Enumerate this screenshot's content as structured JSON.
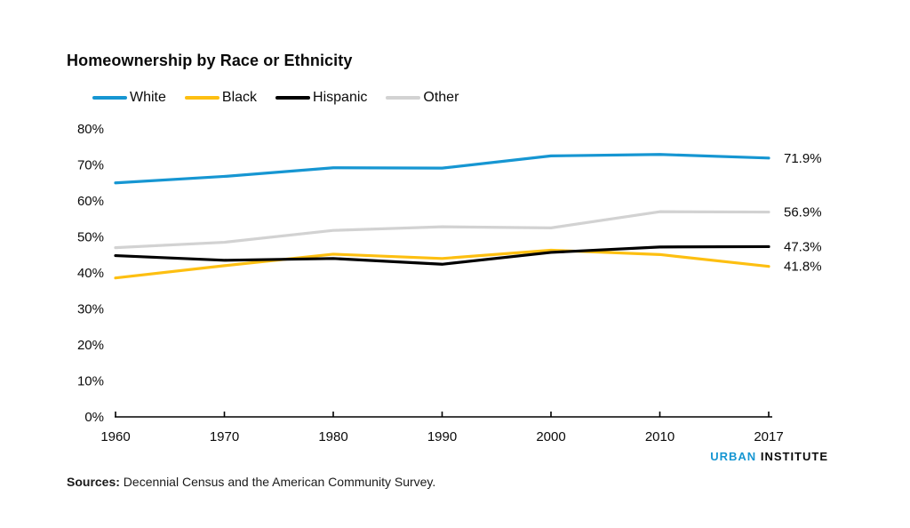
{
  "title": "Homeownership by Race or Ethnicity",
  "chart_data": {
    "type": "line",
    "title": "Homeownership by Race or Ethnicity",
    "x_labels": [
      "1960",
      "1970",
      "1980",
      "1990",
      "2000",
      "2010",
      "2017"
    ],
    "y_ticks": [
      "0%",
      "10%",
      "20%",
      "30%",
      "40%",
      "50%",
      "60%",
      "70%",
      "80%"
    ],
    "y_range": [
      0,
      80
    ],
    "grid": false,
    "legend_position": "top-left",
    "axis_color": "#000000",
    "series": [
      {
        "name": "White",
        "color": "#1696d2",
        "values": [
          65.0,
          66.8,
          69.2,
          69.1,
          72.5,
          72.9,
          71.9
        ],
        "end_label": "71.9%"
      },
      {
        "name": "Black",
        "color": "#fdbf11",
        "values": [
          38.6,
          42.0,
          45.2,
          44.0,
          46.3,
          45.1,
          41.8
        ],
        "end_label": "41.8%"
      },
      {
        "name": "Hispanic",
        "color": "#000000",
        "values": [
          44.8,
          43.5,
          44.0,
          42.4,
          45.7,
          47.2,
          47.3
        ],
        "end_label": "47.3%"
      },
      {
        "name": "Other",
        "color": "#d2d2d2",
        "values": [
          47.0,
          48.5,
          51.8,
          52.8,
          52.5,
          57.0,
          56.9
        ],
        "end_label": "56.9%"
      }
    ]
  },
  "footer": {
    "sources_label": "Sources:",
    "sources_text": " Decennial Census and the American Community Survey.",
    "brand": {
      "part1": "URBAN",
      "part2": "INSTITUTE",
      "accent": "#1696d2"
    }
  }
}
